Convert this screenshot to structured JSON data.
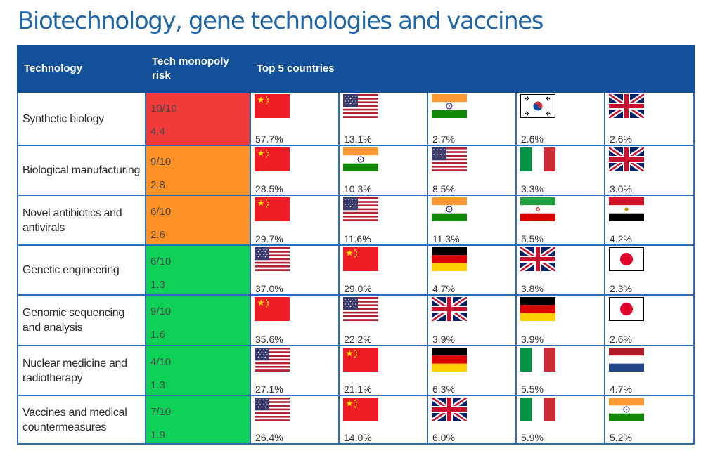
{
  "title": "Biotechnology, gene technologies and vaccines",
  "headers": {
    "technology": "Technology",
    "risk": "Tech monopoly risk",
    "top5": "Top 5 countries"
  },
  "colors": {
    "red": "#f23a3a",
    "orange": "#fd9126",
    "green": "#0fd158",
    "header": "#12509a"
  },
  "rows": [
    {
      "technology": "Synthetic biology",
      "risk_score": "10/10",
      "ratio": "4.4",
      "risk_level": "red",
      "countries": [
        {
          "flag": "china-flag-icon",
          "share": "57.7%"
        },
        {
          "flag": "usa-flag-icon",
          "share": "13.1%"
        },
        {
          "flag": "india-flag-icon",
          "share": "2.7%"
        },
        {
          "flag": "south-korea-flag-icon",
          "share": "2.6%"
        },
        {
          "flag": "uk-flag-icon",
          "share": "2.6%"
        }
      ]
    },
    {
      "technology": "Biological manufacturing",
      "risk_score": "9/10",
      "ratio": "2.8",
      "risk_level": "orange",
      "countries": [
        {
          "flag": "china-flag-icon",
          "share": "28.5%"
        },
        {
          "flag": "india-flag-icon",
          "share": "10.3%"
        },
        {
          "flag": "usa-flag-icon",
          "share": "8.5%"
        },
        {
          "flag": "italy-flag-icon",
          "share": "3.3%"
        },
        {
          "flag": "uk-flag-icon",
          "share": "3.0%"
        }
      ]
    },
    {
      "technology": "Novel antibiotics and antivirals",
      "risk_score": "6/10",
      "ratio": "2.6",
      "risk_level": "orange",
      "countries": [
        {
          "flag": "china-flag-icon",
          "share": "29.7%"
        },
        {
          "flag": "usa-flag-icon",
          "share": "11.6%"
        },
        {
          "flag": "india-flag-icon",
          "share": "11.3%"
        },
        {
          "flag": "iran-flag-icon",
          "share": "5.5%"
        },
        {
          "flag": "egypt-flag-icon",
          "share": "4.2%"
        }
      ]
    },
    {
      "technology": "Genetic engineering",
      "risk_score": "6/10",
      "ratio": "1.3",
      "risk_level": "green",
      "countries": [
        {
          "flag": "usa-flag-icon",
          "share": "37.0%"
        },
        {
          "flag": "china-flag-icon",
          "share": "29.0%"
        },
        {
          "flag": "germany-flag-icon",
          "share": "4.7%"
        },
        {
          "flag": "uk-flag-icon",
          "share": "3.8%"
        },
        {
          "flag": "japan-flag-icon",
          "share": "2.3%"
        }
      ]
    },
    {
      "technology": "Genomic sequencing and analysis",
      "risk_score": "9/10",
      "ratio": "1.6",
      "risk_level": "green",
      "countries": [
        {
          "flag": "china-flag-icon",
          "share": "35.6%"
        },
        {
          "flag": "usa-flag-icon",
          "share": "22.2%"
        },
        {
          "flag": "uk-flag-icon",
          "share": "3.9%"
        },
        {
          "flag": "germany-flag-icon",
          "share": "3.9%"
        },
        {
          "flag": "japan-flag-icon",
          "share": "2.6%"
        }
      ]
    },
    {
      "technology": "Nuclear medicine and radiotherapy",
      "risk_score": "4/10",
      "ratio": "1.3",
      "risk_level": "green",
      "countries": [
        {
          "flag": "usa-flag-icon",
          "share": "27.1%"
        },
        {
          "flag": "china-flag-icon",
          "share": "21.1%"
        },
        {
          "flag": "germany-flag-icon",
          "share": "6.3%"
        },
        {
          "flag": "italy-flag-icon",
          "share": "5.5%"
        },
        {
          "flag": "netherlands-flag-icon",
          "share": "4.7%"
        }
      ]
    },
    {
      "technology": "Vaccines and medical countermeasures",
      "risk_score": "7/10",
      "ratio": "1.9",
      "risk_level": "green",
      "countries": [
        {
          "flag": "usa-flag-icon",
          "share": "26.4%"
        },
        {
          "flag": "china-flag-icon",
          "share": "14.0%"
        },
        {
          "flag": "uk-flag-icon",
          "share": "6.0%"
        },
        {
          "flag": "italy-flag-icon",
          "share": "5.9%"
        },
        {
          "flag": "india-flag-icon",
          "share": "5.2%"
        }
      ]
    }
  ]
}
